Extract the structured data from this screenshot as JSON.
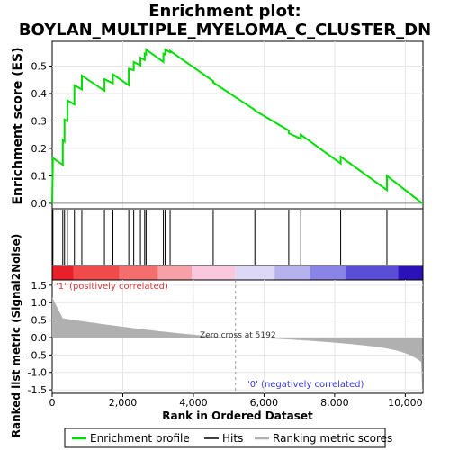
{
  "chart_data": {
    "type": "line",
    "title_line1": "Enrichment plot:",
    "title_line2": "BOYLAN_MULTIPLE_MYELOMA_C_CLUSTER_DN",
    "es_ylabel": "Enrichment score (ES)",
    "metric_ylabel": "Ranked list metric (Signal2Noise)",
    "xlabel": "Rank in Ordered Dataset",
    "xlim": [
      0,
      10500
    ],
    "es_ylim": [
      -0.02,
      0.59
    ],
    "metric_ylim": [
      -1.6,
      1.65
    ],
    "x_ticks": [
      0,
      2000,
      4000,
      6000,
      8000,
      10000
    ],
    "x_tick_labels": [
      "0",
      "2,000",
      "4,000",
      "6,000",
      "8,000",
      "10,000"
    ],
    "es_ticks": [
      0.0,
      0.1,
      0.2,
      0.3,
      0.4,
      0.5
    ],
    "es_tick_labels": [
      "0.0",
      "0.1",
      "0.2",
      "0.3",
      "0.4",
      "0.5"
    ],
    "metric_ticks": [
      -1.5,
      -1.0,
      -0.5,
      0.0,
      0.5,
      1.0,
      1.5
    ],
    "metric_tick_labels": [
      "-1.5",
      "-1.0",
      "-0.5",
      "0.0",
      "0.5",
      "1.0",
      "1.5"
    ],
    "grid": true,
    "hits": [
      20,
      300,
      350,
      430,
      630,
      840,
      1480,
      1720,
      2170,
      2310,
      2500,
      2620,
      2660,
      3150,
      3200,
      3340,
      4560,
      5740,
      6700,
      7040,
      8170,
      9480
    ],
    "es_curve": {
      "x": [
        0,
        20,
        300,
        300,
        350,
        350,
        430,
        430,
        630,
        630,
        840,
        840,
        1480,
        1480,
        1720,
        1720,
        2170,
        2170,
        2310,
        2310,
        2500,
        2500,
        2620,
        2620,
        2660,
        2660,
        3150,
        3150,
        3200,
        3200,
        3340,
        3340,
        4560,
        4560,
        5740,
        5740,
        6700,
        6700,
        7040,
        7040,
        8170,
        8170,
        9480,
        9480,
        10480
      ],
      "y": [
        0.0,
        0.165,
        0.14,
        0.23,
        0.225,
        0.305,
        0.3,
        0.375,
        0.36,
        0.43,
        0.415,
        0.465,
        0.41,
        0.452,
        0.437,
        0.47,
        0.43,
        0.49,
        0.485,
        0.515,
        0.502,
        0.53,
        0.522,
        0.545,
        0.542,
        0.56,
        0.515,
        0.545,
        0.542,
        0.56,
        0.55,
        0.555,
        0.445,
        0.44,
        0.34,
        0.338,
        0.265,
        0.255,
        0.235,
        0.25,
        0.145,
        0.17,
        0.048,
        0.1,
        0.0
      ]
    },
    "zero_cross": 5192,
    "zero_cross_label": "Zero cross at 5192",
    "pos_label": "'1' (positively correlated)",
    "neg_label": "'0' (negatively correlated)",
    "legend": [
      "Enrichment profile",
      "Hits",
      "Ranking metric scores"
    ],
    "colors": {
      "es_line": "#00dd00",
      "hit_line": "#000000",
      "metric_fill": "#b0b0b0",
      "grid": "#e6e6e6",
      "pos_text": "#d43a3a",
      "neg_text": "#3a3ad4"
    },
    "heat_segments": [
      {
        "start": 0,
        "end": 600,
        "color": "#e8202a"
      },
      {
        "start": 600,
        "end": 1900,
        "color": "#f04a4a"
      },
      {
        "start": 1900,
        "end": 3000,
        "color": "#f56e6e"
      },
      {
        "start": 3000,
        "end": 3950,
        "color": "#f7a0a8"
      },
      {
        "start": 3950,
        "end": 5192,
        "color": "#fac8dc"
      },
      {
        "start": 5192,
        "end": 6300,
        "color": "#ddd8f5"
      },
      {
        "start": 6300,
        "end": 7300,
        "color": "#b6b2ee"
      },
      {
        "start": 7300,
        "end": 8300,
        "color": "#8a84e6"
      },
      {
        "start": 8300,
        "end": 9800,
        "color": "#5a4ed8"
      },
      {
        "start": 9800,
        "end": 10500,
        "color": "#2a12b8"
      }
    ]
  }
}
